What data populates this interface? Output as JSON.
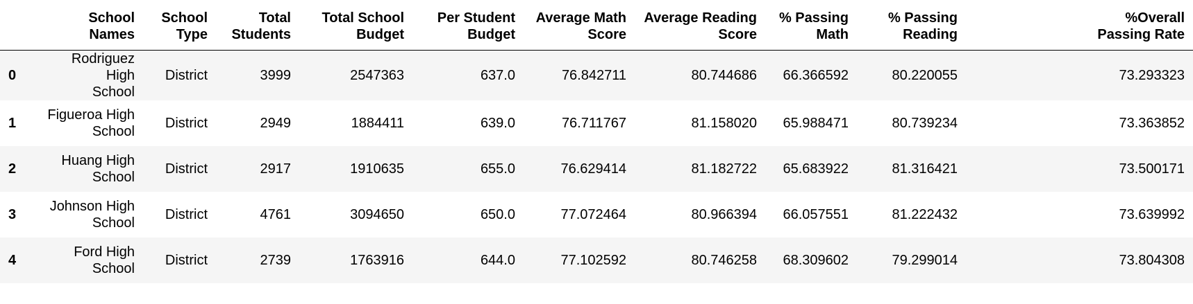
{
  "table": {
    "index_header": "",
    "columns": [
      [
        "School Names"
      ],
      [
        "School",
        "Type"
      ],
      [
        "Total",
        "Students"
      ],
      [
        "Total School",
        "Budget"
      ],
      [
        "Per Student",
        "Budget"
      ],
      [
        "Average Math",
        "Score"
      ],
      [
        "Average Reading",
        "Score"
      ],
      [
        "% Passing",
        "Math"
      ],
      [
        "% Passing",
        "Reading"
      ],
      [
        "%Overall",
        "Passing Rate"
      ]
    ],
    "rows": [
      {
        "index": "0",
        "school": [
          "Rodriguez High",
          "School"
        ],
        "type": "District",
        "students": "3999",
        "budget": "2547363",
        "per_student": "637.0",
        "math": "76.842711",
        "reading": "80.744686",
        "pct_math": "66.366592",
        "pct_reading": "80.220055",
        "overall": "73.293323"
      },
      {
        "index": "1",
        "school": [
          "Figueroa High",
          "School"
        ],
        "type": "District",
        "students": "2949",
        "budget": "1884411",
        "per_student": "639.0",
        "math": "76.711767",
        "reading": "81.158020",
        "pct_math": "65.988471",
        "pct_reading": "80.739234",
        "overall": "73.363852"
      },
      {
        "index": "2",
        "school": [
          "Huang High",
          "School"
        ],
        "type": "District",
        "students": "2917",
        "budget": "1910635",
        "per_student": "655.0",
        "math": "76.629414",
        "reading": "81.182722",
        "pct_math": "65.683922",
        "pct_reading": "81.316421",
        "overall": "73.500171"
      },
      {
        "index": "3",
        "school": [
          "Johnson High",
          "School"
        ],
        "type": "District",
        "students": "4761",
        "budget": "3094650",
        "per_student": "650.0",
        "math": "77.072464",
        "reading": "80.966394",
        "pct_math": "66.057551",
        "pct_reading": "81.222432",
        "overall": "73.639992"
      },
      {
        "index": "4",
        "school": [
          "Ford High",
          "School"
        ],
        "type": "District",
        "students": "2739",
        "budget": "1763916",
        "per_student": "644.0",
        "math": "77.102592",
        "reading": "80.746258",
        "pct_math": "68.309602",
        "pct_reading": "79.299014",
        "overall": "73.804308"
      }
    ]
  }
}
